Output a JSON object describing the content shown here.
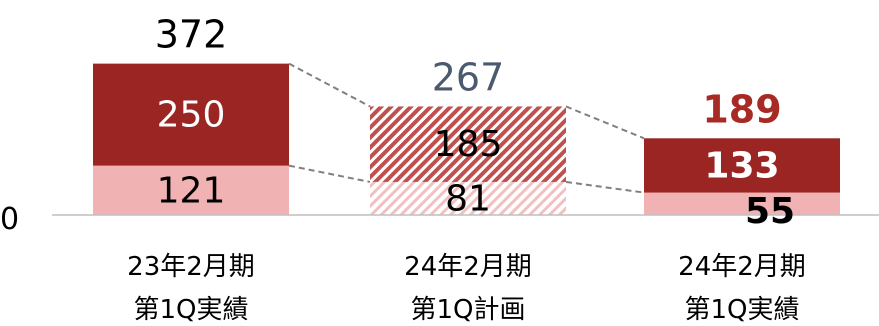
{
  "chart_data": {
    "type": "bar",
    "stacked": true,
    "categories": [
      {
        "line1": "23年2月期",
        "line2": "第1Q実績"
      },
      {
        "line1": "24年2月期",
        "line2": "第1Q計画"
      },
      {
        "line1": "24年2月期",
        "line2": "第1Q実績"
      }
    ],
    "y_zero_label": "0",
    "series": [
      {
        "values": [
          121,
          81,
          55
        ],
        "labels": [
          "121",
          "81",
          "55"
        ]
      },
      {
        "values": [
          250,
          185,
          133
        ],
        "labels": [
          "250",
          "185",
          "133"
        ]
      }
    ],
    "totals": {
      "values": [
        372,
        267,
        189
      ],
      "labels": [
        "372",
        "267",
        "189"
      ]
    },
    "styles": {
      "bottom_color": "#f0b2b2",
      "top_color": "#9b2522",
      "hatched_category_index": 1,
      "total_label_colors": [
        "#000000",
        "#4b5a6e",
        "#a82a25"
      ]
    },
    "connector_lines": true
  }
}
